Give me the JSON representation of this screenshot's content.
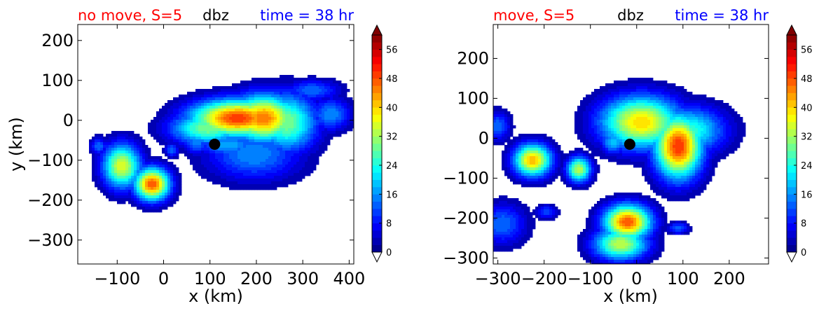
{
  "colors": {
    "title_left": "#ff0000",
    "title_center": "#000000",
    "title_right": "#0000ff",
    "center_marker": "#000000",
    "colormap": "jet"
  },
  "colorbar": {
    "ticks": [
      "0",
      "8",
      "16",
      "24",
      "32",
      "40",
      "48",
      "56"
    ],
    "min": 0,
    "max": 60,
    "step": 2,
    "extend": "both"
  },
  "chart_data": [
    {
      "type": "heatmap",
      "title_left": "no move, S=5",
      "title_center": "dbz",
      "title_right": "time = 38 hr",
      "xlabel": "x (km)",
      "ylabel": "y (km)",
      "xlim": [
        -185,
        410
      ],
      "ylim": [
        -360,
        240
      ],
      "xticks": [
        "−100",
        "0",
        "100",
        "200",
        "300",
        "400"
      ],
      "xtick_values": [
        -100,
        0,
        100,
        200,
        300,
        400
      ],
      "yticks": [
        "200",
        "100",
        "0",
        "−100",
        "−200",
        "−300"
      ],
      "ytick_values": [
        200,
        100,
        0,
        -100,
        -200,
        -300
      ],
      "center_marker": {
        "x": 110,
        "y": -60
      },
      "cells": [
        {
          "x": 160,
          "y": 5,
          "sx": 70,
          "sy": 32,
          "peak": 50
        },
        {
          "x": 215,
          "y": 5,
          "sx": 50,
          "sy": 40,
          "peak": 46
        },
        {
          "x": 265,
          "y": -5,
          "sx": 45,
          "sy": 50,
          "peak": 30
        },
        {
          "x": 320,
          "y": 75,
          "sx": 40,
          "sy": 18,
          "peak": 14
        },
        {
          "x": 95,
          "y": -20,
          "sx": 55,
          "sy": 28,
          "peak": 30
        },
        {
          "x": 70,
          "y": -55,
          "sx": 18,
          "sy": 20,
          "peak": 16
        },
        {
          "x": 140,
          "y": -62,
          "sx": 45,
          "sy": 20,
          "peak": 18
        },
        {
          "x": 195,
          "y": -85,
          "sx": 70,
          "sy": 45,
          "peak": 16
        },
        {
          "x": -90,
          "y": -115,
          "sx": 28,
          "sy": 38,
          "peak": 36
        },
        {
          "x": -25,
          "y": -160,
          "sx": 26,
          "sy": 28,
          "peak": 48
        },
        {
          "x": -140,
          "y": -65,
          "sx": 12,
          "sy": 15,
          "peak": 14
        },
        {
          "x": 360,
          "y": 15,
          "sx": 30,
          "sy": 28,
          "peak": 16
        },
        {
          "x": 18,
          "y": -75,
          "sx": 10,
          "sy": 12,
          "peak": 14
        }
      ]
    },
    {
      "type": "heatmap",
      "title_left": "move, S=5",
      "title_center": "dbz",
      "title_right": "time = 38 hr",
      "xlabel": "x (km)",
      "ylabel": "",
      "xlim": [
        -310,
        285
      ],
      "ylim": [
        -315,
        285
      ],
      "xticks": [
        "−300",
        "−200",
        "−100",
        "0",
        "100",
        "200"
      ],
      "xtick_values": [
        -300,
        -200,
        -100,
        0,
        100,
        200
      ],
      "yticks": [
        "200",
        "100",
        "0",
        "−100",
        "−200",
        "−300"
      ],
      "ytick_values": [
        200,
        100,
        0,
        -100,
        -200,
        -300
      ],
      "center_marker": {
        "x": -15,
        "y": -15
      },
      "cells": [
        {
          "x": 10,
          "y": 40,
          "sx": 60,
          "sy": 45,
          "peak": 40
        },
        {
          "x": 90,
          "y": -20,
          "sx": 35,
          "sy": 55,
          "peak": 50
        },
        {
          "x": 110,
          "y": 20,
          "sx": 55,
          "sy": 40,
          "peak": 26
        },
        {
          "x": -50,
          "y": -10,
          "sx": 18,
          "sy": 20,
          "peak": 20
        },
        {
          "x": -125,
          "y": -78,
          "sx": 18,
          "sy": 22,
          "peak": 34
        },
        {
          "x": -225,
          "y": -55,
          "sx": 28,
          "sy": 28,
          "peak": 42
        },
        {
          "x": -300,
          "y": 30,
          "sx": 18,
          "sy": 25,
          "peak": 14
        },
        {
          "x": -290,
          "y": -215,
          "sx": 35,
          "sy": 35,
          "peak": 14
        },
        {
          "x": -195,
          "y": -185,
          "sx": 15,
          "sy": 12,
          "peak": 12
        },
        {
          "x": -20,
          "y": -210,
          "sx": 35,
          "sy": 30,
          "peak": 48
        },
        {
          "x": -35,
          "y": -265,
          "sx": 40,
          "sy": 28,
          "peak": 34
        },
        {
          "x": 90,
          "y": -225,
          "sx": 15,
          "sy": 10,
          "peak": 14
        },
        {
          "x": 5,
          "y": -275,
          "sx": 20,
          "sy": 15,
          "peak": 18
        }
      ]
    }
  ]
}
